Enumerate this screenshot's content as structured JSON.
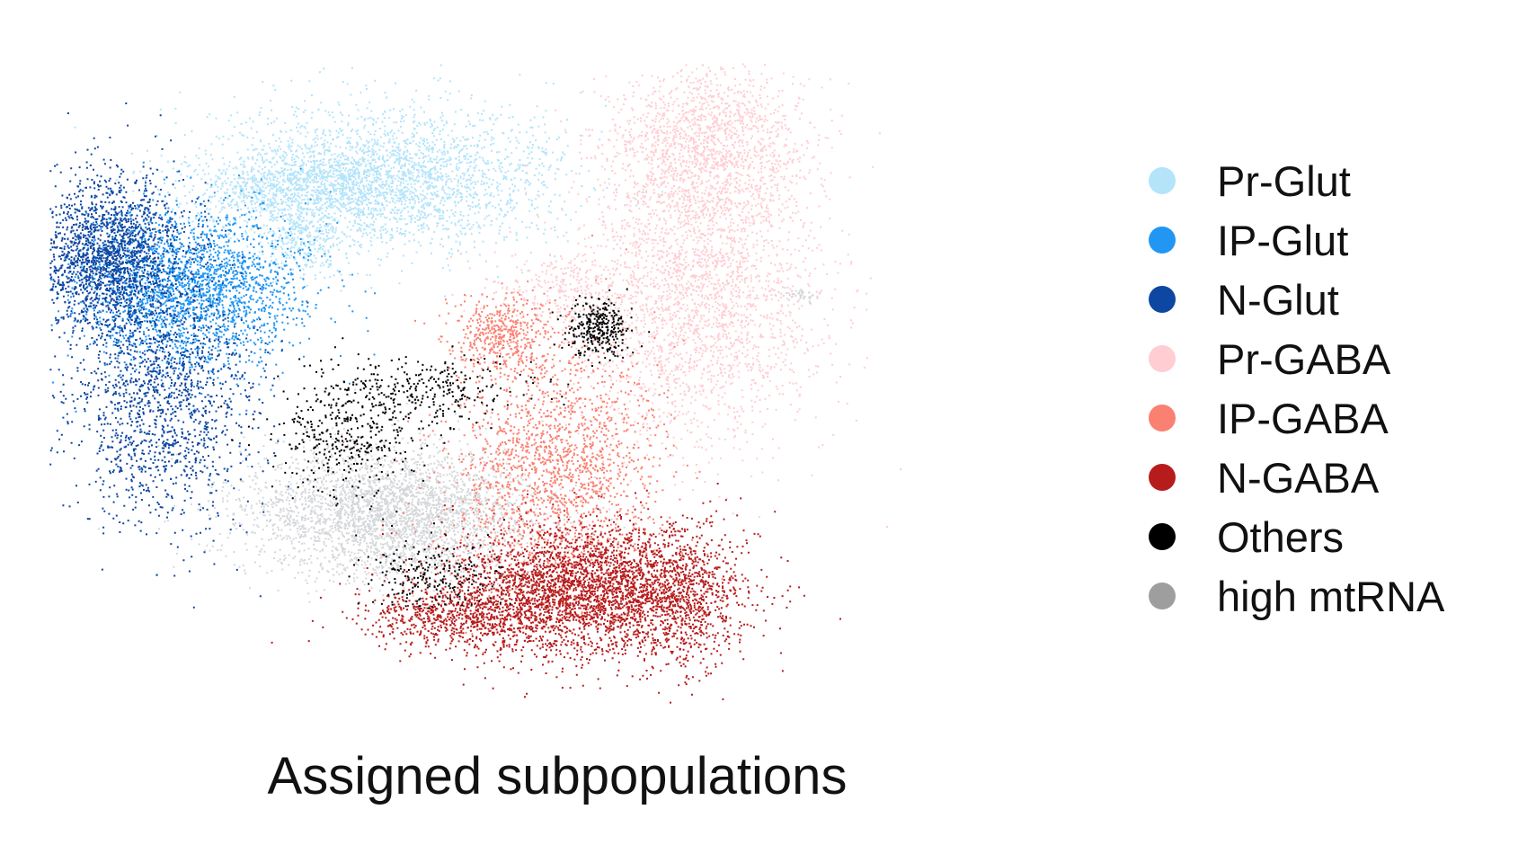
{
  "chart_data": {
    "type": "scatter",
    "title": "Assigned subpopulations",
    "xlabel": "",
    "ylabel": "",
    "axes_visible": false,
    "grid": false,
    "legend_position": "right",
    "series": [
      {
        "name": "Pr-Glut",
        "color": "#b3e4fa",
        "clusters": [
          {
            "x": 39,
            "y": 18,
            "sx": 10,
            "sy": 5.5,
            "n": 2600
          },
          {
            "x": 29,
            "y": 19,
            "sx": 6,
            "sy": 2.5,
            "n": 700
          },
          {
            "x": 30,
            "y": 27,
            "sx": 2.5,
            "sy": 3,
            "n": 300
          }
        ]
      },
      {
        "name": "IP-Glut",
        "color": "#2196f3",
        "clusters": [
          {
            "x": 17,
            "y": 35,
            "sx": 6.5,
            "sy": 6,
            "n": 2200
          }
        ]
      },
      {
        "name": "N-Glut",
        "color": "#0d47a1",
        "clusters": [
          {
            "x": 7,
            "y": 30,
            "sx": 4.5,
            "sy": 6,
            "n": 2000
          },
          {
            "x": 13,
            "y": 52,
            "sx": 5.5,
            "sy": 10,
            "n": 1500
          }
        ]
      },
      {
        "name": "Pr-GABA",
        "color": "#ffcdd2",
        "clusters": [
          {
            "x": 77,
            "y": 13,
            "sx": 6,
            "sy": 7,
            "n": 1700
          },
          {
            "x": 76,
            "y": 37,
            "sx": 7,
            "sy": 11,
            "n": 2300
          },
          {
            "x": 60,
            "y": 35,
            "sx": 5,
            "sy": 3,
            "n": 300
          }
        ]
      },
      {
        "name": "IP-GABA",
        "color": "#fa8072",
        "clusters": [
          {
            "x": 59,
            "y": 62,
            "sx": 6,
            "sy": 10,
            "n": 1800
          },
          {
            "x": 53,
            "y": 42,
            "sx": 3,
            "sy": 3,
            "n": 450
          }
        ]
      },
      {
        "name": "N-GABA",
        "color": "#b71c1c",
        "clusters": [
          {
            "x": 63,
            "y": 82,
            "sx": 8,
            "sy": 5,
            "n": 3200
          },
          {
            "x": 48,
            "y": 86,
            "sx": 6,
            "sy": 2.5,
            "n": 700
          },
          {
            "x": 75,
            "y": 83,
            "sx": 3,
            "sy": 6,
            "n": 500
          }
        ]
      },
      {
        "name": "Others",
        "color": "#000000",
        "clusters": [
          {
            "x": 35,
            "y": 58,
            "sx": 4,
            "sy": 5,
            "n": 420
          },
          {
            "x": 45,
            "y": 50,
            "sx": 6,
            "sy": 2.5,
            "n": 260
          },
          {
            "x": 64,
            "y": 41,
            "sx": 1.8,
            "sy": 2.2,
            "n": 320
          },
          {
            "x": 45,
            "y": 79,
            "sx": 4,
            "sy": 2.5,
            "n": 220
          }
        ]
      },
      {
        "name": "high mtRNA",
        "color": "#d5d7da",
        "legend_color": "#9e9e9e",
        "clusters": [
          {
            "x": 40,
            "y": 70,
            "sx": 8.5,
            "sy": 5,
            "n": 3200
          },
          {
            "x": 88,
            "y": 36,
            "sx": 0.8,
            "sy": 0.5,
            "n": 40
          }
        ]
      }
    ]
  }
}
